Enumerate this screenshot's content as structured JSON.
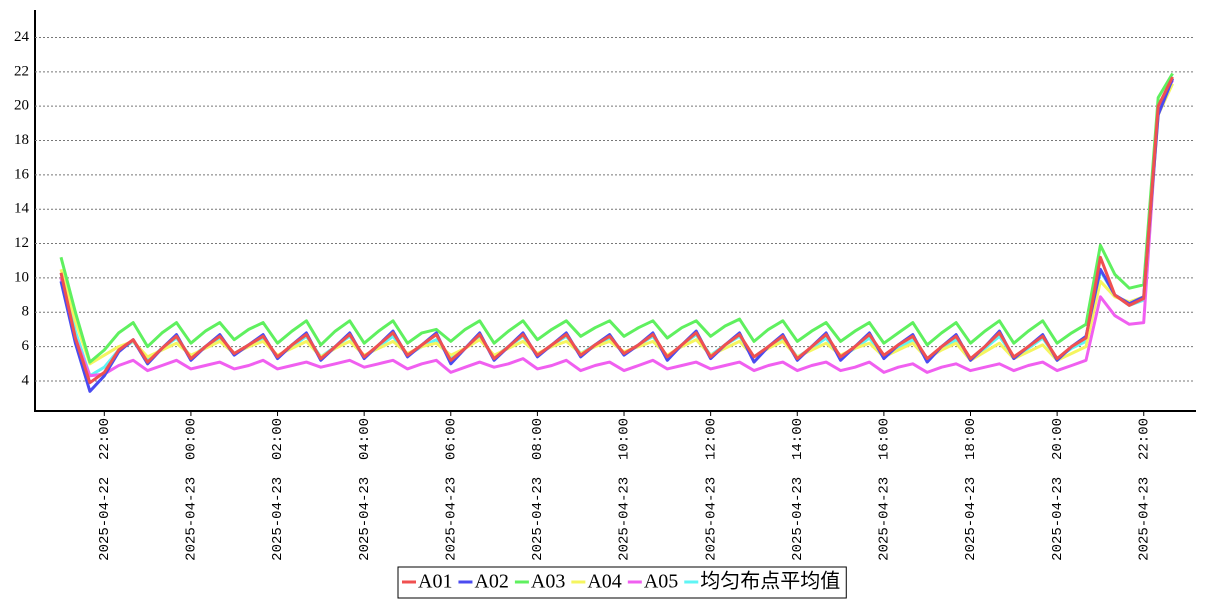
{
  "chart_data": {
    "type": "line",
    "x": [
      "2025-04-22 21:00",
      "2025-04-22 21:20",
      "2025-04-22 21:40",
      "2025-04-22 22:00",
      "2025-04-22 22:20",
      "2025-04-22 22:40",
      "2025-04-22 23:00",
      "2025-04-22 23:20",
      "2025-04-22 23:40",
      "2025-04-23 00:00",
      "2025-04-23 00:20",
      "2025-04-23 00:40",
      "2025-04-23 01:00",
      "2025-04-23 01:20",
      "2025-04-23 01:40",
      "2025-04-23 02:00",
      "2025-04-23 02:20",
      "2025-04-23 02:40",
      "2025-04-23 03:00",
      "2025-04-23 03:20",
      "2025-04-23 03:40",
      "2025-04-23 04:00",
      "2025-04-23 04:20",
      "2025-04-23 04:40",
      "2025-04-23 05:00",
      "2025-04-23 05:20",
      "2025-04-23 05:40",
      "2025-04-23 06:00",
      "2025-04-23 06:20",
      "2025-04-23 06:40",
      "2025-04-23 07:00",
      "2025-04-23 07:20",
      "2025-04-23 07:40",
      "2025-04-23 08:00",
      "2025-04-23 08:20",
      "2025-04-23 08:40",
      "2025-04-23 09:00",
      "2025-04-23 09:20",
      "2025-04-23 09:40",
      "2025-04-23 10:00",
      "2025-04-23 10:20",
      "2025-04-23 10:40",
      "2025-04-23 11:00",
      "2025-04-23 11:20",
      "2025-04-23 11:40",
      "2025-04-23 12:00",
      "2025-04-23 12:20",
      "2025-04-23 12:40",
      "2025-04-23 13:00",
      "2025-04-23 13:20",
      "2025-04-23 13:40",
      "2025-04-23 14:00",
      "2025-04-23 14:20",
      "2025-04-23 14:40",
      "2025-04-23 15:00",
      "2025-04-23 15:20",
      "2025-04-23 15:40",
      "2025-04-23 16:00",
      "2025-04-23 16:20",
      "2025-04-23 16:40",
      "2025-04-23 17:00",
      "2025-04-23 17:20",
      "2025-04-23 17:40",
      "2025-04-23 18:00",
      "2025-04-23 18:20",
      "2025-04-23 18:40",
      "2025-04-23 19:00",
      "2025-04-23 19:20",
      "2025-04-23 19:40",
      "2025-04-23 20:00",
      "2025-04-23 20:20",
      "2025-04-23 20:40",
      "2025-04-23 21:00",
      "2025-04-23 21:20",
      "2025-04-23 21:40",
      "2025-04-23 22:00",
      "2025-04-23 22:20",
      "2025-04-23 22:40"
    ],
    "series": [
      {
        "name": "A01",
        "color": "#f05050",
        "values": [
          10.3,
          6.5,
          3.9,
          4.5,
          5.8,
          6.4,
          5.1,
          5.9,
          6.6,
          5.3,
          6.0,
          6.6,
          5.6,
          6.1,
          6.6,
          5.4,
          6.1,
          6.7,
          5.3,
          6.0,
          6.7,
          5.4,
          6.1,
          6.8,
          5.5,
          6.1,
          6.7,
          5.2,
          5.9,
          6.7,
          5.3,
          6.0,
          6.7,
          5.5,
          6.1,
          6.7,
          5.5,
          6.1,
          6.6,
          5.6,
          6.1,
          6.7,
          5.4,
          6.1,
          6.8,
          5.4,
          6.1,
          6.7,
          5.4,
          6.0,
          6.6,
          5.3,
          6.0,
          6.7,
          5.4,
          6.0,
          6.7,
          5.5,
          6.1,
          6.6,
          5.3,
          6.0,
          6.6,
          5.3,
          6.0,
          6.8,
          5.4,
          6.0,
          6.6,
          5.3,
          6.0,
          6.5,
          11.2,
          9.0,
          8.4,
          8.8,
          20.0,
          21.7
        ]
      },
      {
        "name": "A02",
        "color": "#4b4bf0",
        "values": [
          9.8,
          6.2,
          3.4,
          4.3,
          5.7,
          6.4,
          5.0,
          5.9,
          6.7,
          5.2,
          6.0,
          6.7,
          5.5,
          6.1,
          6.7,
          5.3,
          6.1,
          6.8,
          5.2,
          6.0,
          6.8,
          5.3,
          6.1,
          6.9,
          5.4,
          6.1,
          6.8,
          5.0,
          5.9,
          6.8,
          5.2,
          6.0,
          6.8,
          5.4,
          6.1,
          6.8,
          5.4,
          6.1,
          6.7,
          5.5,
          6.1,
          6.8,
          5.2,
          6.1,
          6.9,
          5.3,
          6.1,
          6.8,
          5.1,
          6.0,
          6.7,
          5.2,
          6.0,
          6.8,
          5.2,
          6.0,
          6.8,
          5.3,
          6.1,
          6.7,
          5.1,
          6.0,
          6.7,
          5.2,
          6.0,
          6.9,
          5.3,
          6.0,
          6.7,
          5.2,
          6.0,
          6.6,
          10.5,
          9.0,
          8.5,
          8.9,
          19.5,
          21.6
        ]
      },
      {
        "name": "A03",
        "color": "#5ff05f",
        "values": [
          11.2,
          8.0,
          5.1,
          5.8,
          6.8,
          7.4,
          6.0,
          6.8,
          7.4,
          6.2,
          6.9,
          7.4,
          6.4,
          7.0,
          7.4,
          6.2,
          6.9,
          7.5,
          6.1,
          6.9,
          7.5,
          6.2,
          6.9,
          7.5,
          6.2,
          6.8,
          7.0,
          6.3,
          7.0,
          7.5,
          6.2,
          6.9,
          7.5,
          6.4,
          7.0,
          7.5,
          6.6,
          7.1,
          7.5,
          6.6,
          7.1,
          7.5,
          6.5,
          7.1,
          7.5,
          6.6,
          7.2,
          7.6,
          6.3,
          7.0,
          7.5,
          6.3,
          6.9,
          7.4,
          6.3,
          6.9,
          7.4,
          6.2,
          6.8,
          7.4,
          6.1,
          6.8,
          7.4,
          6.2,
          6.9,
          7.5,
          6.2,
          6.9,
          7.5,
          6.2,
          6.8,
          7.3,
          11.9,
          10.2,
          9.4,
          9.6,
          20.5,
          21.9
        ]
      },
      {
        "name": "A04",
        "color": "#f5f55f",
        "values": [
          10.5,
          7.5,
          5.0,
          5.5,
          6.0,
          6.3,
          5.4,
          5.8,
          6.2,
          5.5,
          5.9,
          6.3,
          5.6,
          6.0,
          6.3,
          5.5,
          5.9,
          6.3,
          5.4,
          5.9,
          6.3,
          5.5,
          5.9,
          6.3,
          5.6,
          6.0,
          6.2,
          5.5,
          5.9,
          6.4,
          5.5,
          5.9,
          6.3,
          5.6,
          6.0,
          6.3,
          5.6,
          6.0,
          6.3,
          5.7,
          6.0,
          6.3,
          5.5,
          6.0,
          6.4,
          5.5,
          5.9,
          6.3,
          5.4,
          5.9,
          6.3,
          5.4,
          5.8,
          6.2,
          5.5,
          5.9,
          6.2,
          5.4,
          5.8,
          6.2,
          5.3,
          5.8,
          6.2,
          5.2,
          5.7,
          6.2,
          5.3,
          5.7,
          6.1,
          5.2,
          5.6,
          6.0,
          9.8,
          8.9,
          8.6,
          8.9,
          19.5,
          21.3
        ]
      },
      {
        "name": "A05",
        "color": "#f05ff0",
        "values": [
          10.0,
          6.5,
          4.3,
          4.4,
          4.9,
          5.2,
          4.6,
          4.9,
          5.2,
          4.7,
          4.9,
          5.1,
          4.7,
          4.9,
          5.2,
          4.7,
          4.9,
          5.1,
          4.8,
          5.0,
          5.2,
          4.8,
          5.0,
          5.2,
          4.7,
          5.0,
          5.2,
          4.5,
          4.8,
          5.1,
          4.8,
          5.0,
          5.3,
          4.7,
          4.9,
          5.2,
          4.6,
          4.9,
          5.1,
          4.6,
          4.9,
          5.2,
          4.7,
          4.9,
          5.1,
          4.7,
          4.9,
          5.1,
          4.6,
          4.9,
          5.1,
          4.6,
          4.9,
          5.1,
          4.6,
          4.8,
          5.1,
          4.5,
          4.8,
          5.0,
          4.5,
          4.8,
          5.0,
          4.6,
          4.8,
          5.0,
          4.6,
          4.9,
          5.1,
          4.6,
          4.9,
          5.2,
          8.9,
          7.8,
          7.3,
          7.4,
          20.0,
          21.5
        ]
      },
      {
        "name": "均匀布点平均值",
        "color": "#5ff5f5",
        "values": [
          10.3,
          6.9,
          4.3,
          4.8,
          5.8,
          6.3,
          5.2,
          5.9,
          6.5,
          5.4,
          6.0,
          6.5,
          5.6,
          6.1,
          6.5,
          5.4,
          6.0,
          6.6,
          5.4,
          6.0,
          6.6,
          5.4,
          6.0,
          6.6,
          5.5,
          6.0,
          6.4,
          5.3,
          5.9,
          6.6,
          5.4,
          6.0,
          6.6,
          5.5,
          6.1,
          6.6,
          5.6,
          6.1,
          6.5,
          5.6,
          6.1,
          6.6,
          5.4,
          6.1,
          6.7,
          5.5,
          6.1,
          6.6,
          5.4,
          6.0,
          6.5,
          5.4,
          5.9,
          6.5,
          5.4,
          5.9,
          6.5,
          5.4,
          5.9,
          6.4,
          5.3,
          5.9,
          6.4,
          5.3,
          5.9,
          6.6,
          5.4,
          5.9,
          6.5,
          5.3,
          5.9,
          6.3,
          10.4,
          9.0,
          8.4,
          8.7,
          19.9,
          21.6
        ]
      }
    ],
    "xlim": [
      "2025-04-22 20:24",
      "2025-04-23 23:11"
    ],
    "xticks": [
      "2025-04-22  22:00",
      "2025-04-23  00:00",
      "2025-04-23  02:00",
      "2025-04-23  04:00",
      "2025-04-23  06:00",
      "2025-04-23  08:00",
      "2025-04-23  10:00",
      "2025-04-23  12:00",
      "2025-04-23  14:00",
      "2025-04-23  16:00",
      "2025-04-23  18:00",
      "2025-04-23  20:00",
      "2025-04-23  22:00"
    ],
    "ylim": [
      2.25,
      25.6
    ],
    "yticks": [
      4,
      6,
      8,
      10,
      12,
      14,
      16,
      18,
      20,
      22,
      24
    ],
    "grid": true,
    "legend": "bottom"
  }
}
